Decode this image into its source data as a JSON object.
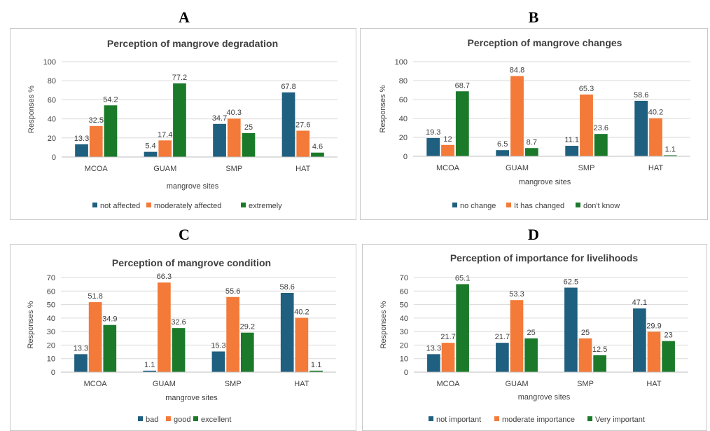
{
  "panels": [
    "A",
    "B",
    "C",
    "D"
  ],
  "colors": {
    "series1": "#1f5f7f",
    "series2": "#f37a38",
    "series3": "#1a7a2a",
    "grid": "#d9d9d9",
    "border": "#c8c8c8",
    "text": "#404040"
  },
  "chart_data": [
    {
      "type": "bar",
      "title": "Perception of mangrove degradation",
      "xlabel": "mangrove sites",
      "ylabel": "Responses %",
      "categories": [
        "MCOA",
        "GUAM",
        "SMP",
        "HAT"
      ],
      "ylim": [
        0,
        100
      ],
      "yticks": [
        0,
        20,
        40,
        60,
        80,
        100
      ],
      "grid": true,
      "legend": "bottom",
      "series": [
        {
          "name": "not affected",
          "values": [
            13.3,
            5.4,
            34.7,
            67.8
          ],
          "labels": [
            "13.3",
            "5.4",
            "34.7",
            "67.8"
          ]
        },
        {
          "name": "moderately affected",
          "values": [
            32.5,
            17.4,
            40.3,
            27.6
          ],
          "labels": [
            "32.5",
            "17.4",
            "40.3",
            "27.6"
          ]
        },
        {
          "name": "extremely",
          "values": [
            54.2,
            77.2,
            25,
            4.6
          ],
          "labels": [
            "54.2",
            "77.2",
            "25",
            "4.6"
          ]
        }
      ]
    },
    {
      "type": "bar",
      "title": "Perception of mangrove changes",
      "xlabel": "mangrove sites",
      "ylabel": "Responses %",
      "categories": [
        "MCOA",
        "GUAM",
        "SMP",
        "HAT"
      ],
      "ylim": [
        0,
        100
      ],
      "yticks": [
        0,
        20,
        40,
        60,
        80,
        100
      ],
      "grid": true,
      "legend": "bottom",
      "series": [
        {
          "name": "no change",
          "values": [
            19.3,
            6.5,
            11.1,
            58.6
          ],
          "labels": [
            "19.3",
            "6.5",
            "11.1",
            "58.6"
          ]
        },
        {
          "name": "It has changed",
          "values": [
            12,
            84.8,
            65.3,
            40.2
          ],
          "labels": [
            "12",
            "84.8",
            "65.3",
            "40.2"
          ]
        },
        {
          "name": "don't know",
          "values": [
            68.7,
            8.7,
            23.6,
            1.1
          ],
          "labels": [
            "68.7",
            "8.7",
            "23.6",
            "1.1"
          ]
        }
      ]
    },
    {
      "type": "bar",
      "title": "Perception of mangrove condition",
      "xlabel": "mangrove sites",
      "ylabel": "Responses %",
      "categories": [
        "MCOA",
        "GUAM",
        "SMP",
        "HAT"
      ],
      "ylim": [
        0,
        70
      ],
      "yticks": [
        0,
        10,
        20,
        30,
        40,
        50,
        60,
        70
      ],
      "grid": true,
      "legend": "bottom",
      "series": [
        {
          "name": "bad",
          "values": [
            13.3,
            1.1,
            15.3,
            58.6
          ],
          "labels": [
            "13.3",
            "1.1",
            "15.3",
            "58.6"
          ]
        },
        {
          "name": "good",
          "values": [
            51.8,
            66.3,
            55.6,
            40.2
          ],
          "labels": [
            "51.8",
            "66.3",
            "55.6",
            "40.2"
          ]
        },
        {
          "name": "excellent",
          "values": [
            34.9,
            32.6,
            29.2,
            1.1
          ],
          "labels": [
            "34.9",
            "32.6",
            "29.2",
            "1.1"
          ]
        }
      ]
    },
    {
      "type": "bar",
      "title": "Perception of importance for livelihoods",
      "xlabel": "mangrove sites",
      "ylabel": "Responses %",
      "categories": [
        "MCOA",
        "GUAM",
        "SMP",
        "HAT"
      ],
      "ylim": [
        0,
        70
      ],
      "yticks": [
        0,
        10,
        20,
        30,
        40,
        50,
        60,
        70
      ],
      "grid": true,
      "legend": "bottom",
      "series": [
        {
          "name": "not important",
          "values": [
            13.3,
            21.7,
            62.5,
            47.1
          ],
          "labels": [
            "13.3",
            "21.7",
            "62.5",
            "47.1"
          ]
        },
        {
          "name": "moderate importance",
          "values": [
            21.7,
            53.3,
            25,
            29.9
          ],
          "labels": [
            "21.7",
            "53.3",
            "25",
            "29.9"
          ]
        },
        {
          "name": "Very important",
          "values": [
            65.1,
            25,
            12.5,
            23
          ],
          "labels": [
            "65.1",
            "25",
            "12.5",
            "23"
          ]
        }
      ]
    }
  ]
}
